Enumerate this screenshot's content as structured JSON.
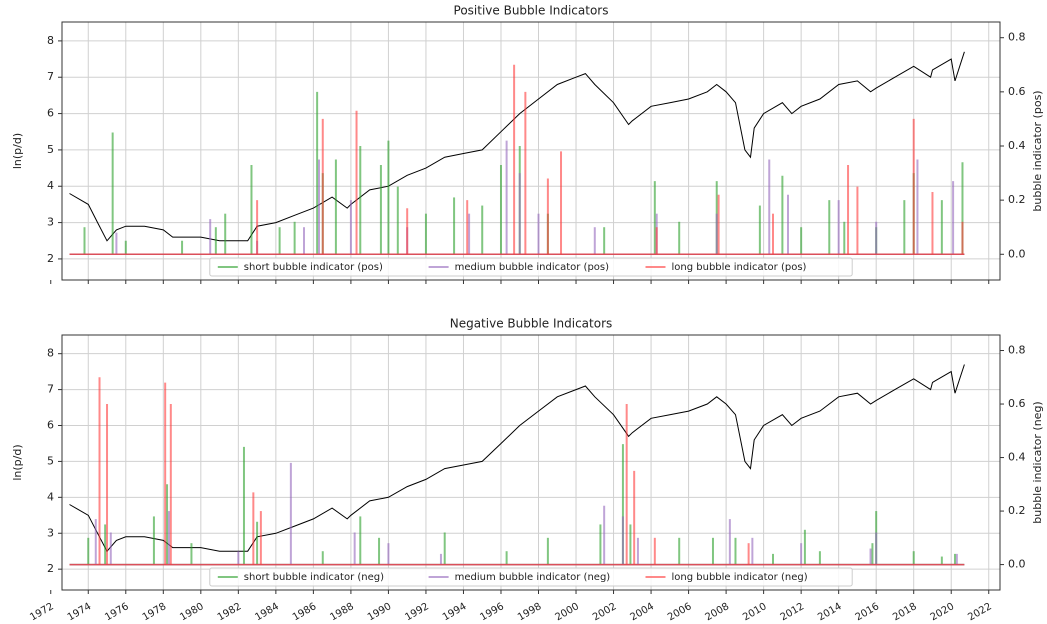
{
  "chart_data": [
    {
      "type": "line",
      "title": "Positive Bubble Indicators",
      "ylabel": "ln(p/d)",
      "y2label": "bubble indicator (pos)",
      "xlim": [
        1972.6,
        2022.6
      ],
      "xticks": [
        1972,
        1974,
        1976,
        1978,
        1980,
        1982,
        1984,
        1986,
        1988,
        1990,
        1992,
        1994,
        1996,
        1998,
        2000,
        2002,
        2004,
        2006,
        2008,
        2010,
        2012,
        2014,
        2016,
        2018,
        2020,
        2022
      ],
      "show_xtick_labels": false,
      "ylim": [
        1.42,
        8.52
      ],
      "yticks": [
        2,
        3,
        4,
        5,
        6,
        7,
        8
      ],
      "y2lim": [
        -0.095,
        0.858
      ],
      "y2ticks": [
        {
          "value": 0,
          "label": "0.0"
        },
        0.2,
        0.4,
        0.6,
        0.8
      ],
      "grid": true,
      "series": [
        {
          "name": "ln(p/d)",
          "color": "#000000",
          "x": [
            1973,
            1974,
            1974.5,
            1975,
            1975.5,
            1976,
            1977,
            1978,
            1978.5,
            1979,
            1980,
            1981,
            1982,
            1982.5,
            1983,
            1984,
            1985,
            1986,
            1987,
            1987.8,
            1988,
            1989,
            1990,
            1991,
            1992,
            1993,
            1994,
            1995,
            1996,
            1997,
            1998,
            1999,
            2000,
            2000.5,
            2001,
            2002,
            2002.8,
            2003,
            2004,
            2005,
            2006,
            2007,
            2007.5,
            2008,
            2008.5,
            2009,
            2009.3,
            2009.5,
            2010,
            2011,
            2011.5,
            2012,
            2013,
            2014,
            2015,
            2015.7,
            2016,
            2017,
            2018,
            2018.9,
            2019,
            2020,
            2020.2,
            2020.7
          ],
          "values": [
            3.8,
            3.5,
            3.0,
            2.5,
            2.8,
            2.9,
            2.9,
            2.8,
            2.6,
            2.6,
            2.6,
            2.5,
            2.5,
            2.5,
            2.9,
            3.0,
            3.2,
            3.4,
            3.7,
            3.4,
            3.5,
            3.9,
            4.0,
            4.3,
            4.5,
            4.8,
            4.9,
            5.0,
            5.5,
            6.0,
            6.4,
            6.8,
            7.0,
            7.1,
            6.8,
            6.3,
            5.7,
            5.8,
            6.2,
            6.3,
            6.4,
            6.6,
            6.8,
            6.6,
            6.3,
            5.0,
            4.8,
            5.6,
            6.0,
            6.3,
            6.0,
            6.2,
            6.4,
            6.8,
            6.9,
            6.6,
            6.7,
            7.0,
            7.3,
            7.0,
            7.2,
            7.5,
            6.9,
            7.7
          ]
        },
        {
          "name": "short bubble indicator (pos)",
          "color": "#2ca02c",
          "axis": "y2",
          "x": [
            1973,
            1973.8,
            1975.3,
            1976,
            1979,
            1980.8,
            1981.3,
            1982.7,
            1984.2,
            1985,
            1986.2,
            1986.5,
            1987.2,
            1988.5,
            1989.6,
            1990,
            1990.5,
            1992,
            1993.5,
            1995,
            1996,
            1997,
            1998.5,
            2001.5,
            2004.2,
            2005.5,
            2007.5,
            2009.8,
            2011,
            2012,
            2013.5,
            2014.3,
            2016,
            2017.5,
            2018,
            2019.5,
            2020.6,
            2020.7
          ],
          "values": [
            0,
            0.1,
            0.45,
            0.05,
            0.05,
            0.1,
            0.15,
            0.33,
            0.1,
            0.12,
            0.6,
            0.3,
            0.35,
            0.4,
            0.33,
            0.42,
            0.25,
            0.15,
            0.21,
            0.18,
            0.33,
            0.4,
            0.15,
            0.1,
            0.27,
            0.12,
            0.27,
            0.18,
            0.29,
            0.1,
            0.2,
            0.12,
            0.1,
            0.2,
            0.3,
            0.2,
            0.34,
            0
          ]
        },
        {
          "name": "medium bubble indicator (pos)",
          "color": "#9467bd",
          "axis": "y2",
          "x": [
            1973,
            1975.5,
            1980.5,
            1983,
            1985.5,
            1986.3,
            1988,
            1991,
            1994.3,
            1996.3,
            1997,
            1998,
            2001,
            2004.3,
            2007.5,
            2010.3,
            2011.3,
            2014,
            2016,
            2018.2,
            2020.1,
            2020.7
          ],
          "values": [
            0,
            0.08,
            0.13,
            0.05,
            0.1,
            0.35,
            0.2,
            0.1,
            0.15,
            0.42,
            0.3,
            0.15,
            0.1,
            0.15,
            0.15,
            0.35,
            0.22,
            0.2,
            0.12,
            0.35,
            0.27,
            0
          ]
        },
        {
          "name": "long bubble indicator (pos)",
          "color": "#ff3b3b",
          "axis": "y2",
          "x": [
            1973,
            1983,
            1986.5,
            1988.3,
            1991,
            1994.2,
            1996.7,
            1997.3,
            1998.5,
            1999.2,
            2004.3,
            2007.6,
            2010.5,
            2014.5,
            2015,
            2018,
            2019,
            2020.6,
            2020.7
          ],
          "values": [
            0,
            0.2,
            0.5,
            0.53,
            0.17,
            0.2,
            0.7,
            0.6,
            0.28,
            0.38,
            0.1,
            0.22,
            0.15,
            0.33,
            0.25,
            0.5,
            0.23,
            0.12,
            0
          ]
        }
      ]
    },
    {
      "type": "line",
      "title": "Negative Bubble Indicators",
      "ylabel": "ln(p/d)",
      "y2label": "bubble indicator (neg)",
      "xlim": [
        1972.6,
        2022.6
      ],
      "xticks": [
        1972,
        1974,
        1976,
        1978,
        1980,
        1982,
        1984,
        1986,
        1988,
        1990,
        1992,
        1994,
        1996,
        1998,
        2000,
        2002,
        2004,
        2006,
        2008,
        2010,
        2012,
        2014,
        2016,
        2018,
        2020,
        2022
      ],
      "show_xtick_labels": true,
      "ylim": [
        1.42,
        8.52
      ],
      "yticks": [
        2,
        3,
        4,
        5,
        6,
        7,
        8
      ],
      "y2lim": [
        -0.095,
        0.858
      ],
      "y2ticks": [
        {
          "value": 0,
          "label": "0.0"
        },
        0.2,
        0.4,
        0.6,
        0.8
      ],
      "grid": true,
      "series": [
        {
          "name": "ln(p/d)",
          "color": "#000000",
          "x": [
            1973,
            1974,
            1974.5,
            1975,
            1975.5,
            1976,
            1977,
            1978,
            1978.5,
            1979,
            1980,
            1981,
            1982,
            1982.5,
            1983,
            1984,
            1985,
            1986,
            1987,
            1987.8,
            1988,
            1989,
            1990,
            1991,
            1992,
            1993,
            1994,
            1995,
            1996,
            1997,
            1998,
            1999,
            2000,
            2000.5,
            2001,
            2002,
            2002.8,
            2003,
            2004,
            2005,
            2006,
            2007,
            2007.5,
            2008,
            2008.5,
            2009,
            2009.3,
            2009.5,
            2010,
            2011,
            2011.5,
            2012,
            2013,
            2014,
            2015,
            2015.7,
            2016,
            2017,
            2018,
            2018.9,
            2019,
            2020,
            2020.2,
            2020.7
          ],
          "values": [
            3.8,
            3.5,
            3.0,
            2.5,
            2.8,
            2.9,
            2.9,
            2.8,
            2.6,
            2.6,
            2.6,
            2.5,
            2.5,
            2.5,
            2.9,
            3.0,
            3.2,
            3.4,
            3.7,
            3.4,
            3.5,
            3.9,
            4.0,
            4.3,
            4.5,
            4.8,
            4.9,
            5.0,
            5.5,
            6.0,
            6.4,
            6.8,
            7.0,
            7.1,
            6.8,
            6.3,
            5.7,
            5.8,
            6.2,
            6.3,
            6.4,
            6.6,
            6.8,
            6.6,
            6.3,
            5.0,
            4.8,
            5.6,
            6.0,
            6.3,
            6.0,
            6.2,
            6.4,
            6.8,
            6.9,
            6.6,
            6.7,
            7.0,
            7.3,
            7.0,
            7.2,
            7.5,
            6.9,
            7.7
          ]
        },
        {
          "name": "short bubble indicator (neg)",
          "color": "#2ca02c",
          "axis": "y2",
          "x": [
            1973,
            1974,
            1974.9,
            1977.5,
            1978.2,
            1979.5,
            1982.3,
            1983,
            1986.5,
            1988.5,
            1989.5,
            1993,
            1996.3,
            1998.5,
            2001.3,
            2002.5,
            2002.9,
            2005.5,
            2007.3,
            2008.5,
            2010.5,
            2012.2,
            2013,
            2015.8,
            2016,
            2018,
            2019.5,
            2020.2,
            2020.7
          ],
          "values": [
            0,
            0.1,
            0.15,
            0.18,
            0.3,
            0.08,
            0.44,
            0.16,
            0.05,
            0.18,
            0.1,
            0.12,
            0.05,
            0.1,
            0.15,
            0.45,
            0.15,
            0.1,
            0.1,
            0.1,
            0.04,
            0.13,
            0.05,
            0.08,
            0.2,
            0.05,
            0.03,
            0.04,
            0
          ]
        },
        {
          "name": "medium bubble indicator (neg)",
          "color": "#9467bd",
          "axis": "y2",
          "x": [
            1973,
            1974.4,
            1975.2,
            1978.3,
            1982,
            1984.8,
            1988.2,
            1990,
            1992.8,
            2001.5,
            2002.5,
            2003.3,
            2008.2,
            2009.4,
            2012,
            2015.7,
            2016,
            2020.3,
            2020.7
          ],
          "values": [
            0,
            0.17,
            0.12,
            0.2,
            0.05,
            0.38,
            0.12,
            0.08,
            0.04,
            0.22,
            0.18,
            0.1,
            0.17,
            0.1,
            0.08,
            0.06,
            0.12,
            0.04,
            0
          ]
        },
        {
          "name": "long bubble indicator (neg)",
          "color": "#ff3b3b",
          "axis": "y2",
          "x": [
            1973,
            1974.6,
            1975,
            1978.1,
            1978.4,
            1982.8,
            1983.2,
            2002.7,
            2003.1,
            2004.2,
            2009.2,
            2020.7
          ],
          "values": [
            0,
            0.7,
            0.6,
            0.68,
            0.6,
            0.27,
            0.2,
            0.6,
            0.35,
            0.1,
            0.08,
            0
          ]
        }
      ]
    }
  ]
}
